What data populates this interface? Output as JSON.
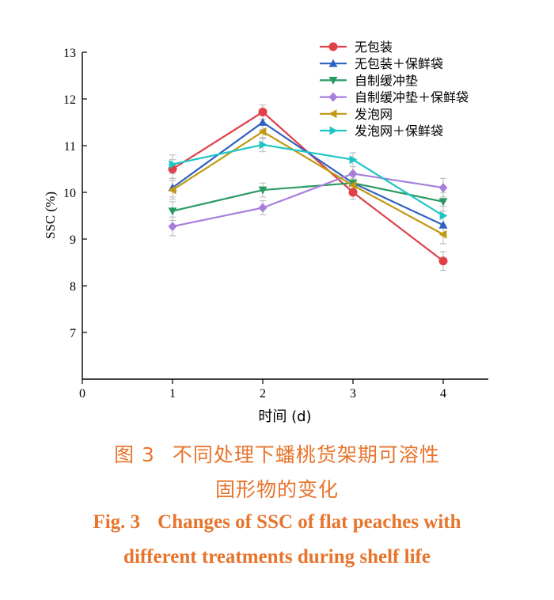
{
  "chart_data": {
    "type": "line",
    "xlabel": "时间 (d)",
    "ylabel": "SSC (%)",
    "xlim": [
      0,
      4.5
    ],
    "ylim": [
      6,
      13
    ],
    "xticks": [
      0,
      1,
      2,
      3,
      4
    ],
    "yticks": [
      7,
      8,
      9,
      10,
      11,
      12,
      13
    ],
    "x": [
      1,
      2,
      3,
      4
    ],
    "legend_position": "top-right",
    "grid": false,
    "series": [
      {
        "name": "无包装",
        "color": "#e04048",
        "marker": "circle",
        "values": [
          10.5,
          11.72,
          10.0,
          8.53
        ]
      },
      {
        "name": "无包装＋保鲜袋",
        "color": "#2f62c0",
        "marker": "triangle-up",
        "values": [
          10.1,
          11.5,
          10.2,
          9.3
        ]
      },
      {
        "name": "自制缓冲垫",
        "color": "#2a9a62",
        "marker": "triangle-down",
        "values": [
          9.6,
          10.05,
          10.2,
          9.8
        ]
      },
      {
        "name": "自制缓冲垫＋保鲜袋",
        "color": "#a77fdb",
        "marker": "diamond",
        "values": [
          9.27,
          9.67,
          10.4,
          10.1
        ]
      },
      {
        "name": "发泡网",
        "color": "#c09a12",
        "marker": "triangle-left",
        "values": [
          10.05,
          11.3,
          10.15,
          9.1
        ]
      },
      {
        "name": "发泡网＋保鲜袋",
        "color": "#1ec5c5",
        "marker": "triangle-right",
        "values": [
          10.6,
          11.02,
          10.7,
          9.5
        ]
      }
    ]
  },
  "caption": {
    "cn_label": "图 3",
    "cn_line1": "不同处理下蟠桃货架期可溶性",
    "cn_line2": "固形物的变化",
    "en_label": "Fig. 3",
    "en_line1": "Changes of SSC of flat peaches with",
    "en_line2": "different treatments during shelf life"
  }
}
